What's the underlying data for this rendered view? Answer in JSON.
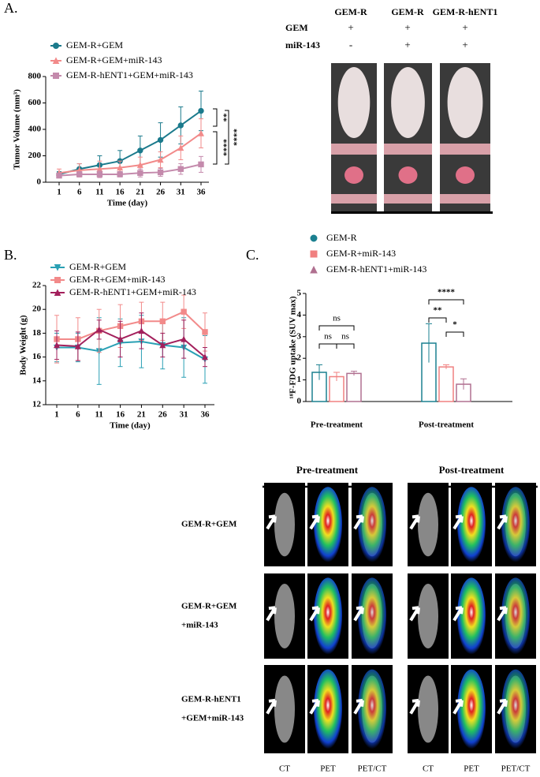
{
  "panel_labels": [
    "A.",
    "B.",
    "C."
  ],
  "chart_data": [
    {
      "type": "line",
      "ylabel": "Tumor Volume (mm³)",
      "xlabel": "Time (day)",
      "categories": [
        "1",
        "6",
        "11",
        "16",
        "21",
        "26",
        "31",
        "36"
      ],
      "ylim": [
        0,
        800
      ],
      "yticks": [
        0,
        200,
        400,
        600,
        800
      ],
      "series": [
        {
          "name": "GEM-R+GEM",
          "color": "#1b7a8c",
          "marker": "circle",
          "values": [
            60,
            100,
            130,
            160,
            240,
            320,
            430,
            540
          ],
          "errors": [
            20,
            40,
            70,
            80,
            110,
            130,
            140,
            150
          ]
        },
        {
          "name": "GEM-R+GEM+miR-143",
          "color": "#f28a8a",
          "marker": "triangle",
          "values": [
            70,
            90,
            100,
            110,
            130,
            170,
            260,
            370
          ],
          "errors": [
            30,
            50,
            60,
            50,
            60,
            60,
            90,
            110
          ]
        },
        {
          "name": "GEM-R-hENT1+GEM+miR-143",
          "color": "#c48aac",
          "marker": "square",
          "values": [
            50,
            60,
            60,
            60,
            70,
            75,
            100,
            135
          ],
          "errors": [
            15,
            20,
            25,
            20,
            30,
            30,
            40,
            60
          ]
        }
      ],
      "annotations": [
        "**",
        "****",
        "****"
      ]
    },
    {
      "type": "line",
      "ylabel": "Body Weight (g)",
      "xlabel": "Time (day)",
      "categories": [
        "1",
        "6",
        "11",
        "16",
        "21",
        "26",
        "31",
        "36"
      ],
      "ylim": [
        12,
        22
      ],
      "yticks": [
        12,
        14,
        16,
        18,
        20,
        22
      ],
      "series": [
        {
          "name": "GEM-R+GEM",
          "color": "#2aa0b4",
          "marker": "triangle-down",
          "values": [
            16.8,
            16.8,
            16.5,
            17.2,
            17.3,
            17.0,
            16.8,
            15.8
          ],
          "errors": [
            1.2,
            1.2,
            2.8,
            2.0,
            2.2,
            2.0,
            2.5,
            2.0
          ]
        },
        {
          "name": "GEM-R+GEM+miR-143",
          "color": "#f28a8a",
          "marker": "square",
          "values": [
            17.5,
            17.5,
            18.2,
            18.6,
            19.0,
            19.0,
            19.8,
            18.1
          ],
          "errors": [
            2.0,
            1.8,
            1.8,
            1.8,
            1.6,
            1.6,
            1.4,
            1.6
          ]
        },
        {
          "name": "GEM-R-hENT1+GEM+miR-143",
          "color": "#a3205c",
          "marker": "triangle",
          "values": [
            17.0,
            16.9,
            18.3,
            17.5,
            18.2,
            17.0,
            17.5,
            16.0
          ],
          "errors": [
            1.2,
            1.2,
            0.8,
            1.5,
            1.5,
            1.0,
            1.6,
            0.8
          ]
        }
      ]
    },
    {
      "type": "bar",
      "ylabel": "¹⁸F-FDG uptake (SUV max)",
      "categories": [
        "Pre-treatment",
        "Post-treatment"
      ],
      "ylim": [
        0,
        5
      ],
      "yticks": [
        0,
        1,
        2,
        3,
        4,
        5
      ],
      "series": [
        {
          "name": "GEM-R",
          "color": "#1b8090",
          "marker": "circle",
          "values": [
            1.35,
            2.7
          ],
          "errors": [
            0.35,
            0.9
          ]
        },
        {
          "name": "GEM-R+miR-143",
          "color": "#f08080",
          "marker": "square",
          "values": [
            1.15,
            1.6
          ],
          "errors": [
            0.2,
            0.1
          ]
        },
        {
          "name": "GEM-R-hENT1+miR-143",
          "color": "#b07090",
          "marker": "triangle",
          "values": [
            1.3,
            0.8
          ],
          "errors": [
            0.1,
            0.25
          ]
        }
      ],
      "annotations": [
        "ns",
        "ns",
        "ns",
        "****",
        "**",
        "*"
      ]
    }
  ],
  "photo_panel": {
    "columns": [
      "GEM-R",
      "GEM-R",
      "GEM-R-hENT1"
    ],
    "rows": [
      {
        "label": "GEM",
        "cells": [
          "+",
          "+",
          "+"
        ]
      },
      {
        "label": "miR-143",
        "cells": [
          "-",
          "+",
          "+"
        ]
      }
    ]
  },
  "pet_panel": {
    "groups": [
      "Pre-treatment",
      "Post-treatment"
    ],
    "rows": [
      [
        "GEM-R+GEM"
      ],
      [
        "GEM-R+GEM",
        "+miR-143"
      ],
      [
        "GEM-R-hENT1",
        "+GEM+miR-143"
      ]
    ],
    "columns": [
      "CT",
      "PET",
      "PET/CT",
      "CT",
      "PET",
      "PET/CT"
    ]
  }
}
